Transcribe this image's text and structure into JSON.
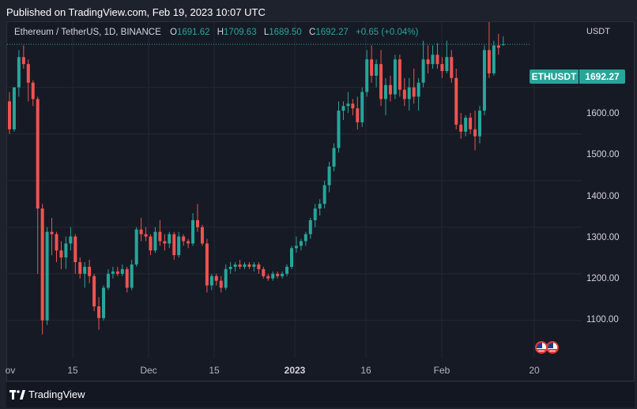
{
  "header": {
    "published": "Published on TradingView.com, Feb 19, 2023 10:07 UTC"
  },
  "legend": {
    "symbol": "Ethereum / TetherUS, 1D, BINANCE",
    "o_label": "O",
    "o": "1691.62",
    "h_label": "H",
    "h": "1709.63",
    "l_label": "L",
    "l": "1689.50",
    "c_label": "C",
    "c": "1692.27",
    "change": "+0.65 (+0.04%)"
  },
  "price_axis": {
    "unit": "USDT",
    "labels": [
      "1600.00",
      "1500.00",
      "1400.00",
      "1300.00",
      "1200.00",
      "1100.00"
    ]
  },
  "time_axis": {
    "labels": [
      "ov",
      "15",
      "Dec",
      "15",
      "2023",
      "16",
      "Feb",
      "20"
    ]
  },
  "price_tag": {
    "symbol": "ETHUSDT",
    "price": "1692.27"
  },
  "footer": {
    "brand": "TradingView"
  },
  "colors": {
    "up": "#26a69a",
    "down": "#ef5350",
    "background": "#161a25",
    "grid": "#242835"
  },
  "icons": {
    "event_flags": "us-flag-icon"
  },
  "chart_data": {
    "type": "candlestick",
    "symbol": "ETHUSDT",
    "interval": "1D",
    "exchange": "BINANCE",
    "start_date": "2022-11-04",
    "ylim": [
      1020,
      1740
    ],
    "y_ticks": [
      1100,
      1200,
      1300,
      1400,
      1500,
      1600
    ],
    "last_price": 1692.27,
    "grid": true,
    "candles": [
      [
        1570,
        1590,
        1500,
        1510
      ],
      [
        1510,
        1600,
        1505,
        1600
      ],
      [
        1600,
        1680,
        1580,
        1665
      ],
      [
        1665,
        1690,
        1640,
        1650
      ],
      [
        1650,
        1660,
        1570,
        1610
      ],
      [
        1610,
        1615,
        1560,
        1575
      ],
      [
        1575,
        1580,
        1200,
        1340
      ],
      [
        1340,
        1350,
        1070,
        1100
      ],
      [
        1100,
        1300,
        1090,
        1290
      ],
      [
        1290,
        1320,
        1240,
        1285
      ],
      [
        1285,
        1290,
        1225,
        1250
      ],
      [
        1250,
        1270,
        1210,
        1235
      ],
      [
        1235,
        1280,
        1210,
        1265
      ],
      [
        1265,
        1300,
        1250,
        1280
      ],
      [
        1280,
        1285,
        1200,
        1225
      ],
      [
        1225,
        1235,
        1190,
        1200
      ],
      [
        1200,
        1225,
        1170,
        1215
      ],
      [
        1215,
        1230,
        1180,
        1195
      ],
      [
        1195,
        1200,
        1120,
        1130
      ],
      [
        1130,
        1150,
        1080,
        1105
      ],
      [
        1105,
        1175,
        1100,
        1170
      ],
      [
        1170,
        1210,
        1165,
        1200
      ],
      [
        1200,
        1215,
        1190,
        1205
      ],
      [
        1205,
        1215,
        1195,
        1200
      ],
      [
        1200,
        1220,
        1195,
        1210
      ],
      [
        1210,
        1215,
        1160,
        1170
      ],
      [
        1170,
        1230,
        1165,
        1220
      ],
      [
        1220,
        1300,
        1215,
        1295
      ],
      [
        1295,
        1320,
        1270,
        1285
      ],
      [
        1285,
        1300,
        1270,
        1280
      ],
      [
        1280,
        1285,
        1240,
        1250
      ],
      [
        1250,
        1300,
        1245,
        1290
      ],
      [
        1290,
        1315,
        1260,
        1270
      ],
      [
        1270,
        1285,
        1250,
        1265
      ],
      [
        1265,
        1290,
        1255,
        1285
      ],
      [
        1285,
        1290,
        1230,
        1240
      ],
      [
        1240,
        1290,
        1235,
        1280
      ],
      [
        1280,
        1285,
        1260,
        1270
      ],
      [
        1270,
        1275,
        1255,
        1265
      ],
      [
        1265,
        1330,
        1260,
        1315
      ],
      [
        1315,
        1350,
        1290,
        1300
      ],
      [
        1300,
        1305,
        1260,
        1265
      ],
      [
        1265,
        1275,
        1160,
        1175
      ],
      [
        1175,
        1200,
        1165,
        1195
      ],
      [
        1195,
        1200,
        1175,
        1185
      ],
      [
        1185,
        1195,
        1160,
        1170
      ],
      [
        1170,
        1220,
        1165,
        1210
      ],
      [
        1210,
        1225,
        1200,
        1215
      ],
      [
        1215,
        1225,
        1205,
        1220
      ],
      [
        1220,
        1230,
        1210,
        1215
      ],
      [
        1215,
        1225,
        1210,
        1220
      ],
      [
        1220,
        1225,
        1210,
        1215
      ],
      [
        1215,
        1225,
        1205,
        1220
      ],
      [
        1220,
        1225,
        1200,
        1210
      ],
      [
        1210,
        1215,
        1190,
        1195
      ],
      [
        1195,
        1200,
        1185,
        1190
      ],
      [
        1190,
        1205,
        1185,
        1200
      ],
      [
        1200,
        1205,
        1190,
        1195
      ],
      [
        1195,
        1205,
        1190,
        1200
      ],
      [
        1200,
        1220,
        1195,
        1215
      ],
      [
        1215,
        1260,
        1210,
        1255
      ],
      [
        1255,
        1280,
        1245,
        1260
      ],
      [
        1260,
        1275,
        1250,
        1270
      ],
      [
        1270,
        1290,
        1260,
        1285
      ],
      [
        1285,
        1320,
        1275,
        1315
      ],
      [
        1315,
        1350,
        1300,
        1340
      ],
      [
        1340,
        1360,
        1325,
        1350
      ],
      [
        1350,
        1400,
        1340,
        1390
      ],
      [
        1390,
        1440,
        1375,
        1430
      ],
      [
        1430,
        1480,
        1420,
        1470
      ],
      [
        1470,
        1570,
        1460,
        1550
      ],
      [
        1550,
        1570,
        1530,
        1560
      ],
      [
        1560,
        1590,
        1545,
        1565
      ],
      [
        1565,
        1575,
        1540,
        1555
      ],
      [
        1555,
        1580,
        1510,
        1525
      ],
      [
        1525,
        1600,
        1515,
        1590
      ],
      [
        1590,
        1680,
        1580,
        1660
      ],
      [
        1660,
        1690,
        1610,
        1625
      ],
      [
        1625,
        1660,
        1600,
        1650
      ],
      [
        1650,
        1680,
        1560,
        1575
      ],
      [
        1575,
        1620,
        1540,
        1605
      ],
      [
        1605,
        1625,
        1570,
        1585
      ],
      [
        1585,
        1670,
        1575,
        1660
      ],
      [
        1660,
        1670,
        1580,
        1595
      ],
      [
        1595,
        1620,
        1560,
        1575
      ],
      [
        1575,
        1620,
        1550,
        1600
      ],
      [
        1600,
        1640,
        1565,
        1580
      ],
      [
        1580,
        1620,
        1550,
        1610
      ],
      [
        1610,
        1700,
        1600,
        1660
      ],
      [
        1660,
        1690,
        1630,
        1650
      ],
      [
        1650,
        1690,
        1640,
        1670
      ],
      [
        1670,
        1695,
        1640,
        1650
      ],
      [
        1650,
        1665,
        1620,
        1635
      ],
      [
        1635,
        1700,
        1630,
        1665
      ],
      [
        1665,
        1680,
        1610,
        1620
      ],
      [
        1620,
        1640,
        1510,
        1520
      ],
      [
        1520,
        1545,
        1490,
        1505
      ],
      [
        1505,
        1540,
        1495,
        1535
      ],
      [
        1535,
        1545,
        1500,
        1510
      ],
      [
        1510,
        1550,
        1465,
        1495
      ],
      [
        1495,
        1560,
        1480,
        1550
      ],
      [
        1550,
        1690,
        1540,
        1680
      ],
      [
        1680,
        1740,
        1620,
        1630
      ],
      [
        1630,
        1700,
        1625,
        1690
      ],
      [
        1690,
        1715,
        1670,
        1685
      ],
      [
        1691.62,
        1709.63,
        1689.5,
        1692.27
      ]
    ]
  }
}
